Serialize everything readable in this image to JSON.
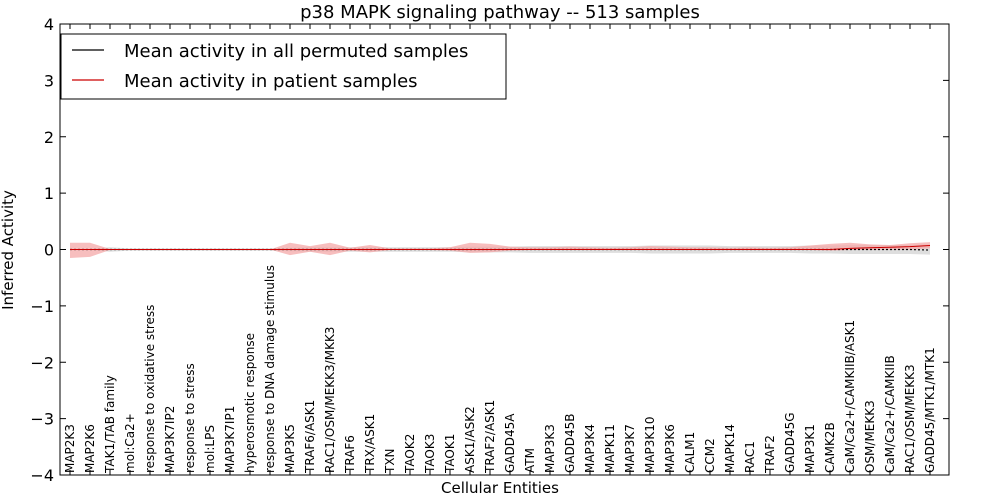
{
  "chart_data": {
    "type": "line",
    "title": "p38 MAPK signaling pathway -- 513 samples",
    "xlabel": "Cellular Entities",
    "ylabel": "Inferred Activity",
    "ylim": [
      -4,
      4
    ],
    "yticks": [
      "−4",
      "−3",
      "−2",
      "−1",
      "0",
      "1",
      "2",
      "3",
      "4"
    ],
    "yticks_values": [
      -4,
      -3,
      -2,
      -1,
      0,
      1,
      2,
      3,
      4
    ],
    "legend_position": "top-left",
    "categories": [
      "MAP2K3",
      "MAP2K6",
      "TAK1/TAB family",
      "mol:Ca2+",
      "response to oxidative stress",
      "MAP3K7IP2",
      "response to stress",
      "mol:LPS",
      "MAP3K7IP1",
      "hyperosmotic response",
      "response to DNA damage stimulus",
      "MAP3K5",
      "TRAF6/ASK1",
      "RAC1/OSM/MEKK3/MKK3",
      "TRAF6",
      "TRX/ASK1",
      "TXN",
      "TAOK2",
      "TAOK3",
      "TAOK1",
      "ASK1/ASK2",
      "TRAF2/ASK1",
      "GADD45A",
      "ATM",
      "MAP3K3",
      "GADD45B",
      "MAP3K4",
      "MAPK11",
      "MAP3K7",
      "MAP3K10",
      "MAP3K6",
      "CALM1",
      "CCM2",
      "MAPK14",
      "RAC1",
      "TRAF2",
      "GADD45G",
      "MAP3K1",
      "CAMK2B",
      "CaM/Ca2+/CAMKIIB/ASK1",
      "OSM/MEKK3",
      "CaM/Ca2+/CAMKIIB",
      "RAC1/OSM/MEKK3",
      "GADD45/MTK1/MTK1"
    ],
    "series": [
      {
        "name": "Mean activity in all permuted samples",
        "color": "#000000",
        "values": [
          0,
          0,
          0,
          0,
          0,
          0,
          0,
          0,
          0,
          0,
          0,
          0,
          0,
          0,
          0,
          0,
          0,
          0,
          0,
          0,
          0,
          0,
          0,
          0,
          0,
          0,
          0,
          0,
          0,
          0,
          0,
          0,
          0,
          0,
          0,
          0,
          0,
          0,
          0,
          0,
          0,
          0,
          0,
          -0.01
        ],
        "band_lower": [
          -0.01,
          -0.01,
          -0.04,
          -0.02,
          -0.02,
          -0.02,
          -0.02,
          -0.02,
          -0.02,
          -0.02,
          -0.02,
          -0.03,
          -0.04,
          -0.04,
          -0.04,
          -0.04,
          -0.04,
          -0.04,
          -0.04,
          -0.04,
          -0.05,
          -0.05,
          -0.05,
          -0.06,
          -0.06,
          -0.06,
          -0.06,
          -0.06,
          -0.06,
          -0.07,
          -0.07,
          -0.07,
          -0.07,
          -0.06,
          -0.06,
          -0.06,
          -0.06,
          -0.07,
          -0.07,
          -0.08,
          -0.08,
          -0.08,
          -0.08,
          -0.09
        ],
        "band_upper": [
          0.01,
          0.01,
          0.04,
          0.02,
          0.02,
          0.02,
          0.02,
          0.02,
          0.02,
          0.02,
          0.02,
          0.03,
          0.04,
          0.04,
          0.04,
          0.04,
          0.04,
          0.04,
          0.04,
          0.04,
          0.05,
          0.05,
          0.05,
          0.06,
          0.06,
          0.06,
          0.06,
          0.06,
          0.06,
          0.07,
          0.07,
          0.07,
          0.07,
          0.06,
          0.06,
          0.06,
          0.06,
          0.07,
          0.07,
          0.08,
          0.08,
          0.08,
          0.08,
          0.09
        ]
      },
      {
        "name": "Mean activity in patient samples",
        "color": "#cc0000",
        "fill": "#f4a8a8",
        "values": [
          0,
          0,
          0,
          0,
          0,
          0,
          0,
          0,
          0,
          0,
          0,
          0,
          0,
          0,
          0,
          0,
          0,
          0,
          0,
          0,
          0,
          0,
          0,
          0,
          0,
          0,
          0,
          0,
          0,
          0,
          0,
          0,
          0,
          0,
          0,
          0,
          0,
          0,
          0,
          0.02,
          0.03,
          0.04,
          0.05,
          0.07
        ],
        "band_lower": [
          -0.15,
          -0.13,
          -0.01,
          0,
          0,
          0,
          0,
          0,
          0,
          0,
          0,
          -0.1,
          -0.04,
          -0.1,
          -0.02,
          -0.05,
          -0.01,
          -0.01,
          -0.01,
          -0.02,
          -0.06,
          -0.05,
          -0.02,
          -0.01,
          -0.01,
          -0.01,
          -0.01,
          -0.01,
          -0.01,
          -0.01,
          -0.01,
          -0.01,
          -0.01,
          -0.01,
          -0.01,
          -0.01,
          -0.01,
          -0.01,
          -0.02,
          -0.01,
          -0.01,
          0,
          0,
          0.02
        ],
        "band_upper": [
          0.12,
          0.12,
          0.01,
          0,
          0,
          0,
          0,
          0,
          0,
          0,
          0,
          0.12,
          0.06,
          0.12,
          0.03,
          0.08,
          0.02,
          0.02,
          0.02,
          0.04,
          0.12,
          0.1,
          0.05,
          0.04,
          0.04,
          0.05,
          0.04,
          0.03,
          0.04,
          0.06,
          0.05,
          0.04,
          0.04,
          0.03,
          0.04,
          0.03,
          0.04,
          0.07,
          0.1,
          0.12,
          0.09,
          0.08,
          0.11,
          0.13
        ]
      }
    ]
  }
}
